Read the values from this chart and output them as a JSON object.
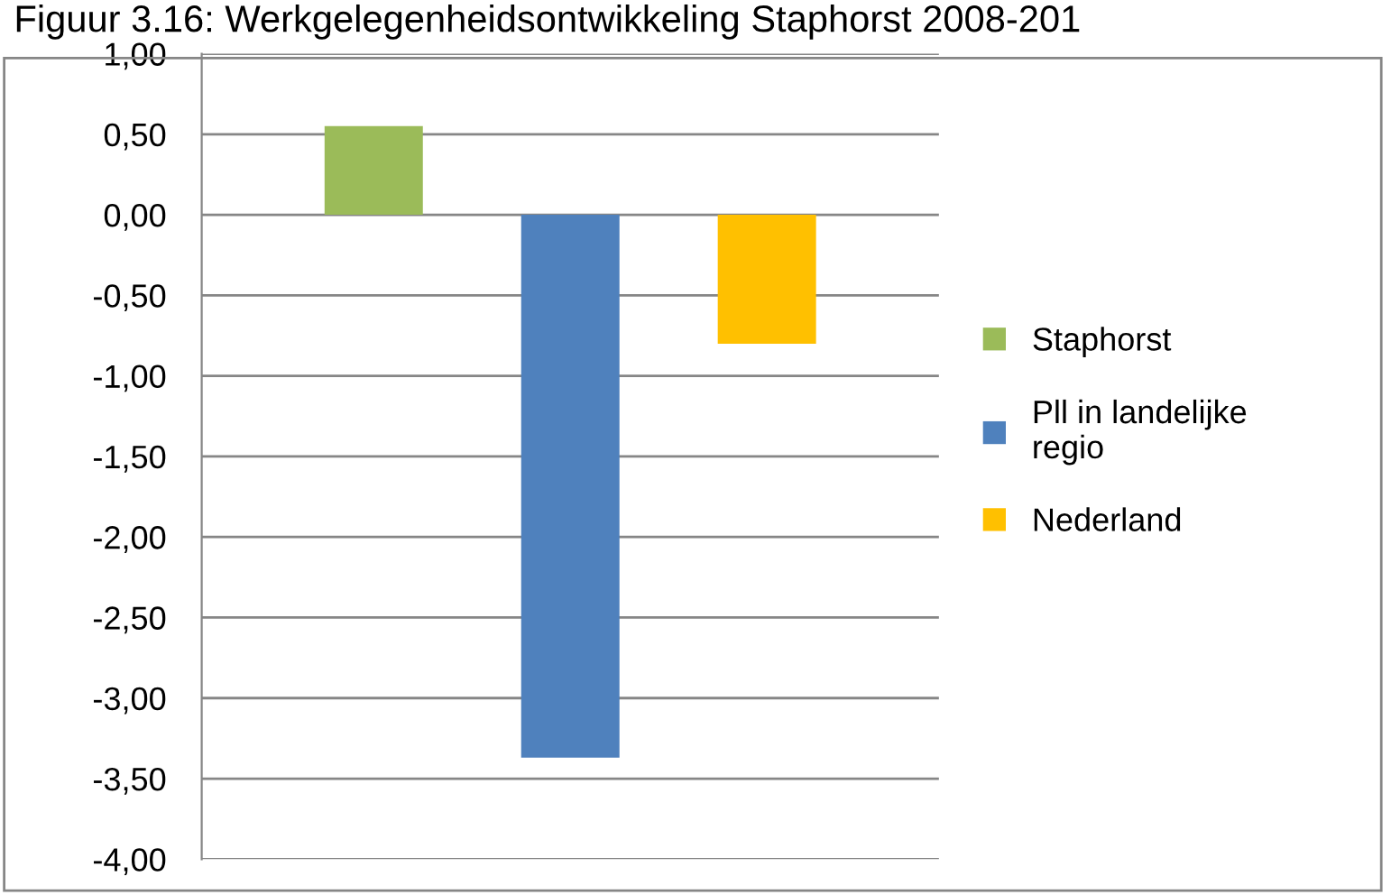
{
  "chart_data": {
    "type": "bar",
    "title": "Figuur 3.16: Werkgelegenheidsontwikkeling Staphorst 2008-201",
    "categories": [
      null
    ],
    "series": [
      {
        "name": "Staphorst",
        "color": "#9bbb59",
        "values": [
          0.55
        ]
      },
      {
        "name": "Pll in landelijke\nregio",
        "color": "#4f81bd",
        "values": [
          -3.37
        ]
      },
      {
        "name": "Nederland",
        "color": "#ffc000",
        "values": [
          -0.8
        ]
      }
    ],
    "ylim": [
      -4,
      1
    ],
    "yticks": [
      {
        "value": 1,
        "label": "1,00"
      },
      {
        "value": 0.5,
        "label": "0,50"
      },
      {
        "value": 0,
        "label": "0,00"
      },
      {
        "value": -0.5,
        "label": "-0,50"
      },
      {
        "value": -1,
        "label": "-1,00"
      },
      {
        "value": -1.5,
        "label": "-1,50"
      },
      {
        "value": -2,
        "label": "-2,00"
      },
      {
        "value": -2.5,
        "label": "-2,50"
      },
      {
        "value": -3,
        "label": "-3,00"
      },
      {
        "value": -3.5,
        "label": "-3,50"
      },
      {
        "value": -4,
        "label": "-4,00"
      }
    ],
    "grid": "y",
    "legend": "right"
  }
}
